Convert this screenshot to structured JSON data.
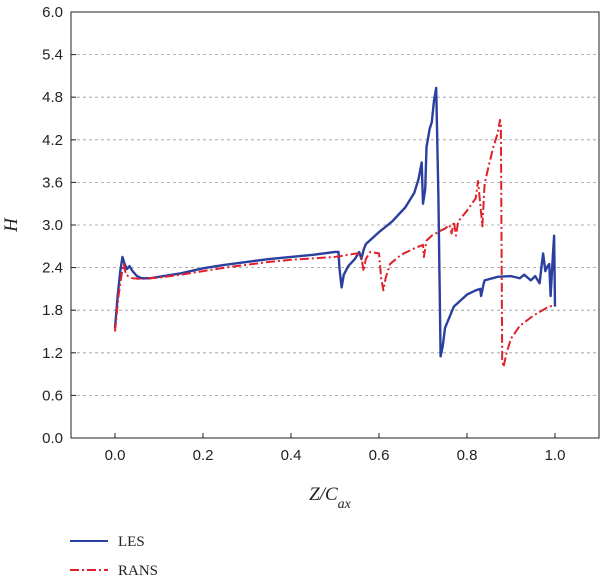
{
  "chart_data": {
    "type": "line",
    "title": "",
    "xlabel": "Z/C",
    "xlabel_subscript": "ax",
    "ylabel": "H",
    "xlim": [
      -0.1,
      1.1
    ],
    "ylim": [
      0.0,
      6.0
    ],
    "xticks": [
      "0.0",
      "0.2",
      "0.4",
      "0.6",
      "0.8",
      "1.0"
    ],
    "yticks": [
      "0.0",
      "0.6",
      "1.2",
      "1.8",
      "2.4",
      "3.0",
      "3.6",
      "4.2",
      "4.8",
      "5.4",
      "6.0"
    ],
    "grid": "horizontal-dashed",
    "legend_position": "bottom-left",
    "series": [
      {
        "name": "LES",
        "color": "#2b3f9e",
        "style": "solid",
        "points": [
          [
            0.0,
            1.55
          ],
          [
            0.006,
            2.0
          ],
          [
            0.012,
            2.35
          ],
          [
            0.017,
            2.55
          ],
          [
            0.022,
            2.45
          ],
          [
            0.027,
            2.38
          ],
          [
            0.033,
            2.42
          ],
          [
            0.04,
            2.35
          ],
          [
            0.05,
            2.28
          ],
          [
            0.06,
            2.25
          ],
          [
            0.08,
            2.25
          ],
          [
            0.1,
            2.27
          ],
          [
            0.15,
            2.32
          ],
          [
            0.2,
            2.39
          ],
          [
            0.25,
            2.44
          ],
          [
            0.3,
            2.48
          ],
          [
            0.35,
            2.52
          ],
          [
            0.4,
            2.55
          ],
          [
            0.45,
            2.58
          ],
          [
            0.5,
            2.62
          ],
          [
            0.508,
            2.62
          ],
          [
            0.51,
            2.4
          ],
          [
            0.515,
            2.12
          ],
          [
            0.52,
            2.3
          ],
          [
            0.53,
            2.42
          ],
          [
            0.545,
            2.52
          ],
          [
            0.555,
            2.62
          ],
          [
            0.56,
            2.52
          ],
          [
            0.565,
            2.65
          ],
          [
            0.57,
            2.73
          ],
          [
            0.6,
            2.9
          ],
          [
            0.63,
            3.05
          ],
          [
            0.66,
            3.25
          ],
          [
            0.68,
            3.45
          ],
          [
            0.69,
            3.65
          ],
          [
            0.697,
            3.88
          ],
          [
            0.7,
            3.3
          ],
          [
            0.705,
            3.5
          ],
          [
            0.708,
            4.1
          ],
          [
            0.715,
            4.35
          ],
          [
            0.72,
            4.45
          ],
          [
            0.725,
            4.75
          ],
          [
            0.73,
            4.93
          ],
          [
            0.735,
            3.4
          ],
          [
            0.74,
            1.15
          ],
          [
            0.745,
            1.3
          ],
          [
            0.75,
            1.55
          ],
          [
            0.77,
            1.85
          ],
          [
            0.8,
            2.02
          ],
          [
            0.82,
            2.08
          ],
          [
            0.83,
            2.1
          ],
          [
            0.832,
            2.0
          ],
          [
            0.837,
            2.15
          ],
          [
            0.84,
            2.22
          ],
          [
            0.87,
            2.27
          ],
          [
            0.9,
            2.28
          ],
          [
            0.92,
            2.25
          ],
          [
            0.93,
            2.3
          ],
          [
            0.945,
            2.22
          ],
          [
            0.955,
            2.28
          ],
          [
            0.965,
            2.18
          ],
          [
            0.97,
            2.45
          ],
          [
            0.973,
            2.6
          ],
          [
            0.978,
            2.35
          ],
          [
            0.983,
            2.42
          ],
          [
            0.987,
            2.45
          ],
          [
            0.99,
            2.0
          ],
          [
            0.995,
            2.55
          ],
          [
            0.998,
            2.85
          ],
          [
            1.0,
            1.85
          ]
        ]
      },
      {
        "name": "RANS",
        "color": "#e0202a",
        "style": "dashdot",
        "points": [
          [
            0.0,
            1.5
          ],
          [
            0.008,
            2.0
          ],
          [
            0.015,
            2.3
          ],
          [
            0.02,
            2.45
          ],
          [
            0.025,
            2.3
          ],
          [
            0.03,
            2.28
          ],
          [
            0.04,
            2.25
          ],
          [
            0.06,
            2.24
          ],
          [
            0.1,
            2.26
          ],
          [
            0.15,
            2.3
          ],
          [
            0.2,
            2.35
          ],
          [
            0.25,
            2.4
          ],
          [
            0.3,
            2.44
          ],
          [
            0.35,
            2.48
          ],
          [
            0.4,
            2.51
          ],
          [
            0.45,
            2.53
          ],
          [
            0.5,
            2.55
          ],
          [
            0.52,
            2.57
          ],
          [
            0.55,
            2.6
          ],
          [
            0.56,
            2.55
          ],
          [
            0.565,
            2.35
          ],
          [
            0.57,
            2.52
          ],
          [
            0.58,
            2.62
          ],
          [
            0.6,
            2.6
          ],
          [
            0.605,
            2.25
          ],
          [
            0.61,
            2.08
          ],
          [
            0.615,
            2.25
          ],
          [
            0.625,
            2.45
          ],
          [
            0.65,
            2.58
          ],
          [
            0.68,
            2.67
          ],
          [
            0.7,
            2.72
          ],
          [
            0.702,
            2.55
          ],
          [
            0.708,
            2.78
          ],
          [
            0.72,
            2.85
          ],
          [
            0.74,
            2.92
          ],
          [
            0.75,
            2.95
          ],
          [
            0.76,
            3.0
          ],
          [
            0.765,
            2.88
          ],
          [
            0.77,
            3.05
          ],
          [
            0.775,
            2.85
          ],
          [
            0.78,
            3.05
          ],
          [
            0.8,
            3.2
          ],
          [
            0.82,
            3.38
          ],
          [
            0.825,
            3.62
          ],
          [
            0.83,
            3.3
          ],
          [
            0.835,
            2.98
          ],
          [
            0.84,
            3.58
          ],
          [
            0.85,
            3.85
          ],
          [
            0.86,
            4.1
          ],
          [
            0.87,
            4.3
          ],
          [
            0.875,
            4.48
          ],
          [
            0.877,
            4.4
          ],
          [
            0.88,
            1.1
          ],
          [
            0.883,
            1.0
          ],
          [
            0.89,
            1.2
          ],
          [
            0.9,
            1.4
          ],
          [
            0.92,
            1.58
          ],
          [
            0.95,
            1.72
          ],
          [
            0.98,
            1.83
          ],
          [
            1.0,
            1.88
          ]
        ]
      }
    ]
  }
}
